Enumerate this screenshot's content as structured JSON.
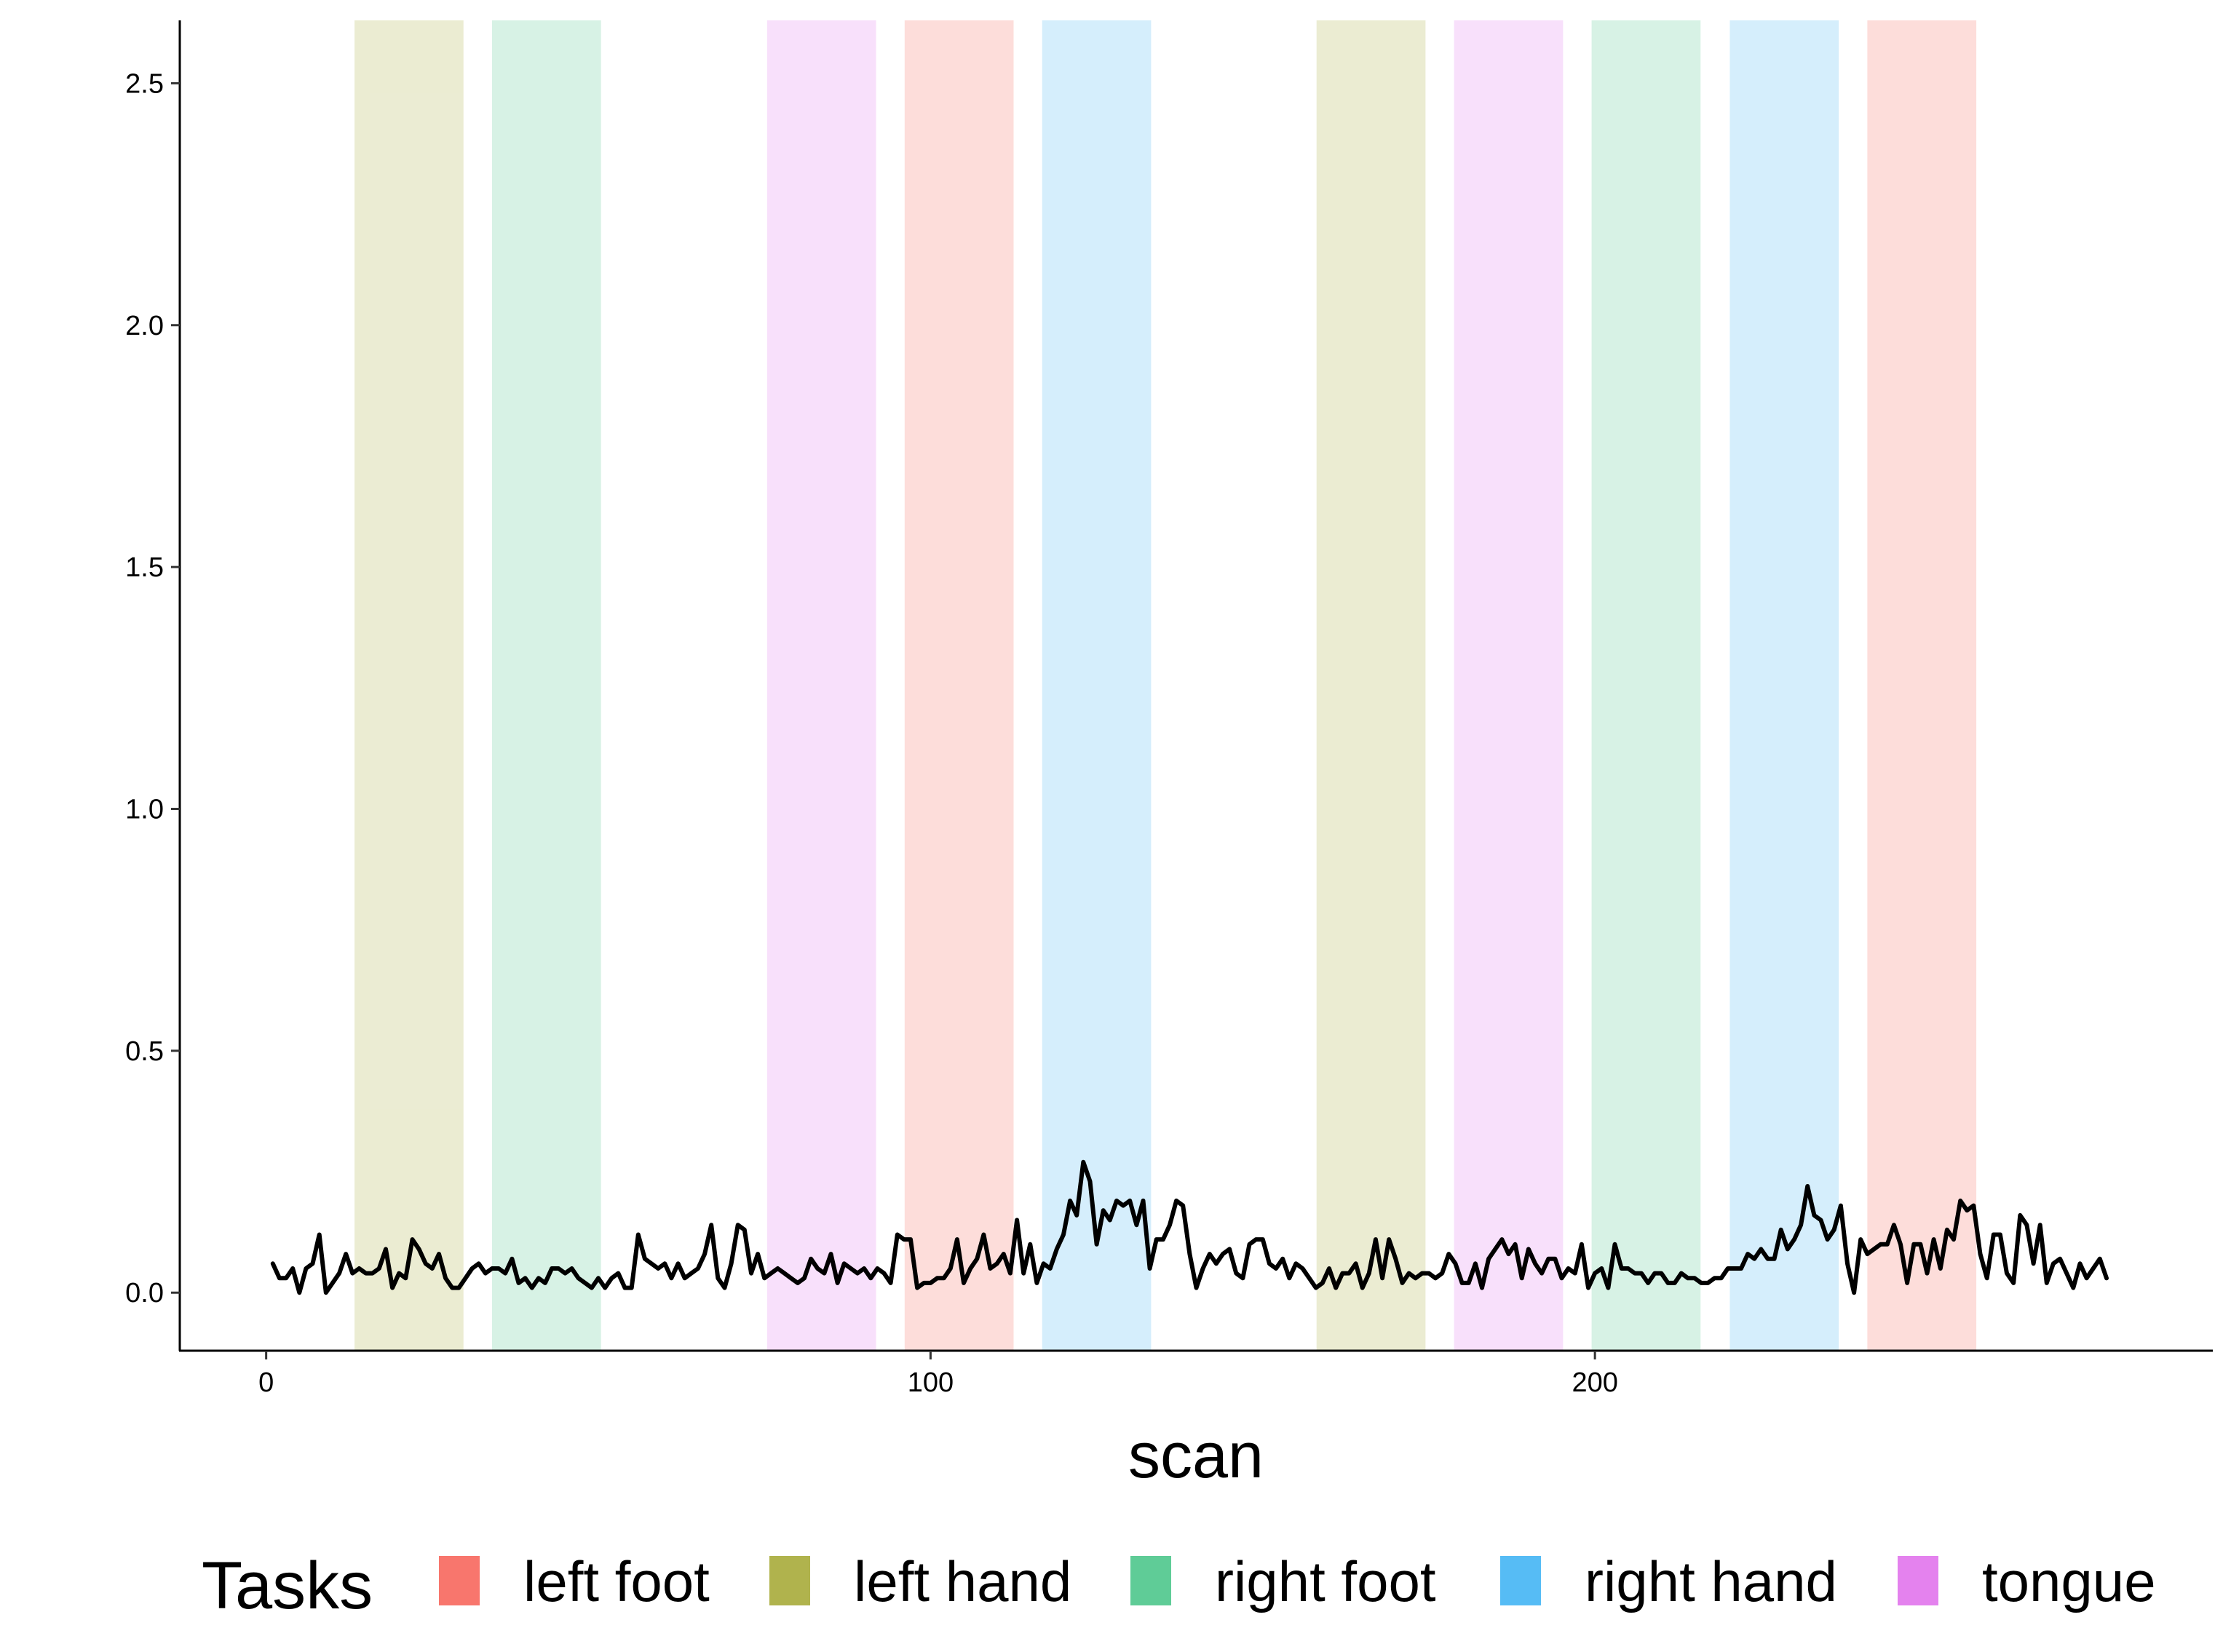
{
  "chart_data": {
    "type": "line",
    "title": "",
    "xlabel": "scan",
    "ylabel": "",
    "xlim": [
      -13,
      293
    ],
    "ylim": [
      -0.12,
      2.63
    ],
    "x_ticks": [
      0,
      100,
      200
    ],
    "y_ticks": [
      0.0,
      0.5,
      1.0,
      1.5,
      2.0,
      2.5
    ],
    "x_tick_labels": [
      "0",
      "100",
      "200"
    ],
    "y_tick_labels": [
      "0.0",
      "0.5",
      "1.0",
      "1.5",
      "2.0",
      "2.5"
    ],
    "grid": false,
    "legend": {
      "title": "Tasks",
      "position": "bottom",
      "entries": [
        {
          "label": "left foot",
          "color": "#F8766D"
        },
        {
          "label": "left hand",
          "color": "#B0B34D"
        },
        {
          "label": "right foot",
          "color": "#5FCC97"
        },
        {
          "label": "right hand",
          "color": "#56BCF5"
        },
        {
          "label": "tongue",
          "color": "#E482EE"
        }
      ]
    },
    "task_blocks": [
      {
        "task": "left hand",
        "start": 13.3,
        "end": 29.7
      },
      {
        "task": "right foot",
        "start": 34.0,
        "end": 50.4
      },
      {
        "task": "tongue",
        "start": 75.4,
        "end": 91.8
      },
      {
        "task": "left foot",
        "start": 96.1,
        "end": 112.5
      },
      {
        "task": "right hand",
        "start": 116.8,
        "end": 133.2
      },
      {
        "task": "left hand",
        "start": 158.1,
        "end": 174.5
      },
      {
        "task": "tongue",
        "start": 178.8,
        "end": 195.2
      },
      {
        "task": "right foot",
        "start": 199.5,
        "end": 215.9
      },
      {
        "task": "right hand",
        "start": 220.3,
        "end": 236.7
      },
      {
        "task": "left foot",
        "start": 241.0,
        "end": 257.4
      }
    ],
    "series": [
      {
        "color": "#000000",
        "x_start": 1,
        "x_step": 1,
        "values": [
          0.06,
          0.03,
          0.03,
          0.05,
          0.0,
          0.05,
          0.06,
          0.12,
          0.0,
          0.02,
          0.04,
          0.08,
          0.04,
          0.05,
          0.04,
          0.04,
          0.05,
          0.09,
          0.01,
          0.04,
          0.03,
          0.11,
          0.09,
          0.06,
          0.05,
          0.08,
          0.03,
          0.01,
          0.01,
          0.03,
          0.05,
          0.06,
          0.04,
          0.05,
          0.05,
          0.04,
          0.07,
          0.02,
          0.03,
          0.01,
          0.03,
          0.02,
          0.05,
          0.05,
          0.04,
          0.05,
          0.03,
          0.02,
          0.01,
          0.03,
          0.01,
          0.03,
          0.04,
          0.01,
          0.01,
          0.12,
          0.07,
          0.06,
          0.05,
          0.06,
          0.03,
          0.06,
          0.03,
          0.04,
          0.05,
          0.08,
          0.14,
          0.03,
          0.01,
          0.06,
          0.14,
          0.13,
          0.04,
          0.08,
          0.03,
          0.04,
          0.05,
          0.04,
          0.03,
          0.02,
          0.03,
          0.07,
          0.05,
          0.04,
          0.08,
          0.02,
          0.06,
          0.05,
          0.04,
          0.05,
          0.03,
          0.05,
          0.04,
          0.02,
          0.12,
          0.11,
          0.11,
          0.01,
          0.02,
          0.02,
          0.03,
          0.03,
          0.05,
          0.11,
          0.02,
          0.05,
          0.07,
          0.12,
          0.05,
          0.06,
          0.08,
          0.04,
          0.15,
          0.04,
          0.1,
          0.02,
          0.06,
          0.05,
          0.09,
          0.12,
          0.19,
          0.16,
          0.27,
          0.23,
          0.1,
          0.17,
          0.15,
          0.19,
          0.18,
          0.19,
          0.14,
          0.19,
          0.05,
          0.11,
          0.11,
          0.14,
          0.19,
          0.18,
          0.08,
          0.01,
          0.05,
          0.08,
          0.06,
          0.08,
          0.09,
          0.04,
          0.03,
          0.1,
          0.11,
          0.11,
          0.06,
          0.05,
          0.07,
          0.03,
          0.06,
          0.05,
          0.03,
          0.01,
          0.02,
          0.05,
          0.01,
          0.04,
          0.04,
          0.06,
          0.01,
          0.04,
          0.11,
          0.03,
          0.11,
          0.07,
          0.02,
          0.04,
          0.03,
          0.04,
          0.04,
          0.03,
          0.04,
          0.08,
          0.06,
          0.02,
          0.02,
          0.06,
          0.01,
          0.07,
          0.09,
          0.11,
          0.08,
          0.1,
          0.03,
          0.09,
          0.06,
          0.04,
          0.07,
          0.07,
          0.03,
          0.05,
          0.04,
          0.1,
          0.01,
          0.04,
          0.05,
          0.01,
          0.1,
          0.05,
          0.05,
          0.04,
          0.04,
          0.02,
          0.04,
          0.04,
          0.02,
          0.02,
          0.04,
          0.03,
          0.03,
          0.02,
          0.02,
          0.03,
          0.03,
          0.05,
          0.05,
          0.05,
          0.08,
          0.07,
          0.09,
          0.07,
          0.07,
          0.13,
          0.09,
          0.11,
          0.14,
          0.22,
          0.16,
          0.15,
          0.11,
          0.13,
          0.18,
          0.06,
          0.0,
          0.11,
          0.08,
          0.09,
          0.1,
          0.1,
          0.14,
          0.1,
          0.02,
          0.1,
          0.1,
          0.04,
          0.11,
          0.05,
          0.13,
          0.11,
          0.19,
          0.17,
          0.18,
          0.08,
          0.03,
          0.12,
          0.12,
          0.04,
          0.02,
          0.16,
          0.14,
          0.06,
          0.14,
          0.02,
          0.06,
          0.07,
          0.04,
          0.01,
          0.06,
          0.03,
          0.05,
          0.07,
          0.03
        ]
      }
    ]
  }
}
